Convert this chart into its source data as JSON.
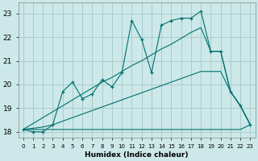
{
  "xlabel": "Humidex (Indice chaleur)",
  "background_color": "#cce8e8",
  "grid_color": "#aacccc",
  "line_color": "#007070",
  "x_values": [
    0,
    1,
    2,
    3,
    4,
    5,
    6,
    7,
    8,
    9,
    10,
    11,
    12,
    13,
    14,
    15,
    16,
    17,
    18,
    19,
    20,
    21,
    22,
    23
  ],
  "y_main": [
    18.1,
    18.0,
    18.0,
    18.3,
    19.7,
    20.1,
    19.4,
    19.6,
    20.2,
    19.9,
    20.5,
    22.7,
    21.9,
    20.5,
    22.5,
    22.7,
    22.8,
    22.8,
    23.1,
    21.4,
    21.4,
    19.7,
    19.1,
    18.3
  ],
  "y_reg_steep": [
    18.1,
    18.35,
    18.6,
    18.85,
    19.1,
    19.35,
    19.6,
    19.85,
    20.1,
    20.3,
    20.55,
    20.8,
    21.0,
    21.25,
    21.5,
    21.7,
    21.95,
    22.2,
    22.4,
    21.4,
    21.4,
    19.7,
    19.1,
    18.3
  ],
  "y_reg_shallow": [
    18.1,
    18.15,
    18.2,
    18.3,
    18.45,
    18.6,
    18.75,
    18.9,
    19.05,
    19.2,
    19.35,
    19.5,
    19.65,
    19.8,
    19.95,
    20.1,
    20.25,
    20.4,
    20.55,
    20.55,
    20.55,
    19.7,
    19.1,
    18.3
  ],
  "y_flat": [
    18.1,
    18.1,
    18.1,
    18.1,
    18.1,
    18.1,
    18.1,
    18.1,
    18.1,
    18.1,
    18.1,
    18.1,
    18.1,
    18.1,
    18.1,
    18.1,
    18.1,
    18.1,
    18.1,
    18.1,
    18.1,
    18.1,
    18.1,
    18.3
  ],
  "ylim": [
    17.75,
    23.45
  ],
  "xlim": [
    -0.5,
    23.5
  ],
  "yticks": [
    18,
    19,
    20,
    21,
    22,
    23
  ],
  "xticks": [
    0,
    1,
    2,
    3,
    4,
    5,
    6,
    7,
    8,
    9,
    10,
    11,
    12,
    13,
    14,
    15,
    16,
    17,
    18,
    19,
    20,
    21,
    22,
    23
  ]
}
